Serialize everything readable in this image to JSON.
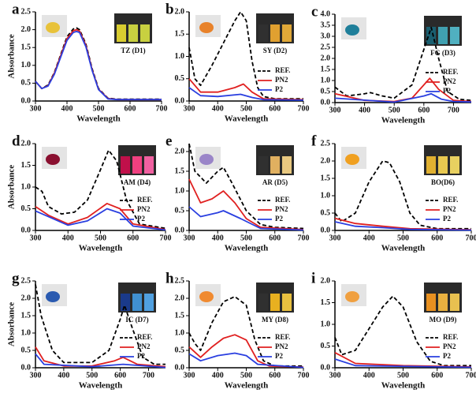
{
  "chart_data": [
    {
      "type": "line",
      "panel": "a",
      "label": "TZ (D1)",
      "ylabel": "Absorbance",
      "xlabel": "Wavelength",
      "legend": false,
      "xlim": [
        300,
        700
      ],
      "xticks": [
        300,
        400,
        500,
        600,
        700
      ],
      "ylim": [
        0,
        2.5
      ],
      "yticks": [
        {
          "value": 0,
          "label": "0.0"
        },
        0.5,
        {
          "value": 1,
          "label": "1.0"
        },
        1.5,
        {
          "value": 2,
          "label": "2.0"
        },
        2.5
      ],
      "series": [
        {
          "name": "REF.",
          "color": "#000000",
          "style": "dashed",
          "x": [
            300,
            320,
            340,
            360,
            380,
            400,
            420,
            430,
            440,
            460,
            480,
            500,
            530,
            560,
            600,
            700
          ],
          "values": [
            0.55,
            0.35,
            0.45,
            0.8,
            1.3,
            1.8,
            2.02,
            2.05,
            2.0,
            1.6,
            0.9,
            0.35,
            0.08,
            0.05,
            0.05,
            0.05
          ]
        },
        {
          "name": "PN2",
          "color": "#e02020",
          "style": "solid",
          "x": [
            300,
            320,
            340,
            360,
            380,
            400,
            420,
            430,
            440,
            460,
            480,
            500,
            530,
            560,
            600,
            700
          ],
          "values": [
            0.55,
            0.35,
            0.43,
            0.78,
            1.27,
            1.75,
            1.97,
            2.0,
            1.96,
            1.56,
            0.87,
            0.33,
            0.07,
            0.04,
            0.04,
            0.04
          ]
        },
        {
          "name": "P2",
          "color": "#2a3fe0",
          "style": "solid",
          "x": [
            300,
            320,
            340,
            360,
            380,
            400,
            420,
            430,
            440,
            460,
            480,
            500,
            530,
            560,
            600,
            700
          ],
          "values": [
            0.55,
            0.35,
            0.42,
            0.75,
            1.23,
            1.7,
            1.92,
            1.95,
            1.92,
            1.52,
            0.85,
            0.32,
            0.06,
            0.04,
            0.04,
            0.04
          ]
        }
      ]
    },
    {
      "type": "line",
      "panel": "b",
      "label": "SY (D2)",
      "xlabel": "Wavelength",
      "legend": true,
      "xlim": [
        300,
        700
      ],
      "xticks": [
        300,
        400,
        500,
        600,
        700
      ],
      "ylim": [
        0,
        2.0
      ],
      "yticks": [
        {
          "value": 0,
          "label": "0.0"
        },
        0.5,
        {
          "value": 1,
          "label": "1.0"
        },
        1.5,
        {
          "value": 2,
          "label": "2.0"
        }
      ],
      "series": [
        {
          "name": "REF.",
          "color": "#000000",
          "style": "dashed",
          "x": [
            300,
            320,
            340,
            380,
            420,
            460,
            480,
            500,
            520,
            540,
            560,
            600,
            700
          ],
          "values": [
            1.2,
            0.5,
            0.35,
            0.8,
            1.3,
            1.8,
            2.0,
            1.8,
            0.9,
            0.3,
            0.1,
            0.05,
            0.05
          ]
        },
        {
          "name": "PN2",
          "color": "#e02020",
          "style": "solid",
          "x": [
            300,
            340,
            400,
            460,
            490,
            520,
            560,
            700
          ],
          "values": [
            0.5,
            0.2,
            0.2,
            0.3,
            0.38,
            0.2,
            0.05,
            0.03
          ]
        },
        {
          "name": "P2",
          "color": "#2a3fe0",
          "style": "solid",
          "x": [
            300,
            340,
            400,
            480,
            520,
            560,
            700
          ],
          "values": [
            0.3,
            0.12,
            0.1,
            0.15,
            0.08,
            0.03,
            0.02
          ]
        }
      ]
    },
    {
      "type": "line",
      "panel": "c",
      "label": "FG (D3)",
      "xlabel": "Wavelength",
      "legend": true,
      "xlim": [
        300,
        760
      ],
      "xticks": [
        300,
        400,
        500,
        600,
        700
      ],
      "ylim": [
        0,
        4.0
      ],
      "yticks": [
        {
          "value": 0,
          "label": "0.0"
        },
        0.5,
        {
          "value": 1,
          "label": "1.0"
        },
        1.5,
        {
          "value": 2,
          "label": "2.0"
        },
        2.5,
        {
          "value": 3,
          "label": "3.0"
        },
        3.5,
        {
          "value": 4,
          "label": "4.0"
        }
      ],
      "series": [
        {
          "name": "REF.",
          "color": "#000000",
          "style": "dashed",
          "x": [
            300,
            340,
            400,
            420,
            460,
            500,
            560,
            600,
            625,
            650,
            680,
            720,
            760
          ],
          "values": [
            0.7,
            0.3,
            0.4,
            0.45,
            0.3,
            0.2,
            0.8,
            2.4,
            3.4,
            2.0,
            0.5,
            0.15,
            0.1
          ]
        },
        {
          "name": "PN2",
          "color": "#e02020",
          "style": "solid",
          "x": [
            300,
            400,
            500,
            560,
            600,
            620,
            650,
            700,
            760
          ],
          "values": [
            0.4,
            0.1,
            0.05,
            0.2,
            0.8,
            1.1,
            0.6,
            0.1,
            0.05
          ]
        },
        {
          "name": "P2",
          "color": "#2a3fe0",
          "style": "solid",
          "x": [
            300,
            500,
            600,
            625,
            660,
            700,
            760
          ],
          "values": [
            0.2,
            0.02,
            0.3,
            0.4,
            0.15,
            0.05,
            0.03
          ]
        }
      ]
    },
    {
      "type": "line",
      "panel": "d",
      "label": "AM (D4)",
      "ylabel": "Absorbance",
      "xlabel": "Wavelength",
      "legend": true,
      "xlim": [
        300,
        700
      ],
      "xticks": [
        300,
        400,
        500,
        600,
        700
      ],
      "ylim": [
        0,
        2.0
      ],
      "yticks": [
        {
          "value": 0,
          "label": "0.0"
        },
        0.5,
        {
          "value": 1,
          "label": "1.0"
        },
        1.5,
        {
          "value": 2,
          "label": "2.0"
        }
      ],
      "series": [
        {
          "name": "REF.",
          "color": "#000000",
          "style": "dashed",
          "x": [
            300,
            320,
            340,
            380,
            420,
            460,
            500,
            525,
            550,
            580,
            620,
            700
          ],
          "values": [
            1.0,
            0.9,
            0.55,
            0.38,
            0.42,
            0.7,
            1.4,
            1.85,
            1.6,
            0.7,
            0.15,
            0.05
          ]
        },
        {
          "name": "PN2",
          "color": "#e02020",
          "style": "solid",
          "x": [
            300,
            340,
            400,
            460,
            520,
            560,
            600,
            700
          ],
          "values": [
            0.55,
            0.35,
            0.15,
            0.3,
            0.62,
            0.5,
            0.15,
            0.02
          ]
        },
        {
          "name": "P2",
          "color": "#2a3fe0",
          "style": "solid",
          "x": [
            300,
            400,
            460,
            520,
            560,
            600,
            700
          ],
          "values": [
            0.45,
            0.12,
            0.22,
            0.5,
            0.4,
            0.1,
            0.01
          ]
        }
      ]
    },
    {
      "type": "line",
      "panel": "e",
      "label": "AR (D5)",
      "xlabel": "Wavelength",
      "legend": true,
      "xlim": [
        300,
        700
      ],
      "xticks": [
        300,
        400,
        500,
        600,
        700
      ],
      "ylim": [
        0,
        2.2
      ],
      "yticks": [
        {
          "value": 0,
          "label": "0.0"
        },
        0.5,
        {
          "value": 1,
          "label": "1.0"
        },
        1.5,
        {
          "value": 2,
          "label": "2.0"
        }
      ],
      "series": [
        {
          "name": "REF.",
          "color": "#000000",
          "style": "dashed",
          "x": [
            300,
            320,
            360,
            400,
            420,
            450,
            500,
            550,
            600,
            700
          ],
          "values": [
            2.2,
            1.5,
            1.2,
            1.5,
            1.6,
            1.2,
            0.5,
            0.15,
            0.08,
            0.05
          ]
        },
        {
          "name": "PN2",
          "color": "#e02020",
          "style": "solid",
          "x": [
            300,
            340,
            380,
            420,
            460,
            500,
            550,
            700
          ],
          "values": [
            1.3,
            0.7,
            0.8,
            1.0,
            0.7,
            0.3,
            0.08,
            0.02
          ]
        },
        {
          "name": "P2",
          "color": "#2a3fe0",
          "style": "solid",
          "x": [
            300,
            340,
            400,
            420,
            480,
            550,
            700
          ],
          "values": [
            0.6,
            0.35,
            0.45,
            0.5,
            0.3,
            0.05,
            0.01
          ]
        }
      ]
    },
    {
      "type": "line",
      "panel": "f",
      "label": "BO(D6)",
      "xlabel": "Wavelength",
      "legend": true,
      "xlim": [
        300,
        700
      ],
      "xticks": [
        300,
        400,
        500,
        600,
        700
      ],
      "ylim": [
        0,
        2.5
      ],
      "yticks": [
        {
          "value": 0,
          "label": "0.0"
        },
        0.5,
        {
          "value": 1,
          "label": "1.0"
        },
        1.5,
        {
          "value": 2,
          "label": "2.0"
        },
        2.5
      ],
      "series": [
        {
          "name": "REF.",
          "color": "#000000",
          "style": "dashed",
          "x": [
            300,
            320,
            360,
            400,
            440,
            460,
            490,
            520,
            550,
            600,
            700
          ],
          "values": [
            0.5,
            0.25,
            0.5,
            1.4,
            2.0,
            1.95,
            1.4,
            0.5,
            0.15,
            0.05,
            0.05
          ]
        },
        {
          "name": "PN2",
          "color": "#e02020",
          "style": "solid",
          "x": [
            300,
            360,
            440,
            520,
            700
          ],
          "values": [
            0.35,
            0.2,
            0.12,
            0.05,
            0.02
          ]
        },
        {
          "name": "P2",
          "color": "#2a3fe0",
          "style": "solid",
          "x": [
            300,
            360,
            440,
            520,
            700
          ],
          "values": [
            0.25,
            0.12,
            0.08,
            0.03,
            0.01
          ]
        }
      ]
    },
    {
      "type": "line",
      "panel": "g",
      "label": "IC (D7)",
      "ylabel": "Absorbance",
      "xlabel": "Wavelength",
      "legend": true,
      "xlim": [
        300,
        760
      ],
      "xticks": [
        300,
        400,
        500,
        600,
        700
      ],
      "ylim": [
        0,
        2.5
      ],
      "yticks": [
        {
          "value": 0,
          "label": "0.0"
        },
        0.5,
        {
          "value": 1,
          "label": "1.0"
        },
        1.5,
        {
          "value": 2,
          "label": "2.0"
        },
        2.5
      ],
      "series": [
        {
          "name": "REF.",
          "color": "#000000",
          "style": "dashed",
          "x": [
            300,
            320,
            340,
            360,
            400,
            500,
            560,
            600,
            615,
            640,
            680,
            720,
            760
          ],
          "values": [
            2.4,
            1.5,
            1.0,
            0.5,
            0.15,
            0.15,
            0.5,
            1.4,
            1.8,
            1.2,
            0.3,
            0.1,
            0.1
          ]
        },
        {
          "name": "PN2",
          "color": "#e02020",
          "style": "solid",
          "x": [
            300,
            330,
            400,
            500,
            580,
            610,
            660,
            760
          ],
          "values": [
            0.6,
            0.2,
            0.05,
            0.05,
            0.2,
            0.3,
            0.1,
            0.03
          ]
        },
        {
          "name": "P2",
          "color": "#2a3fe0",
          "style": "solid",
          "x": [
            300,
            330,
            500,
            610,
            760
          ],
          "values": [
            0.4,
            0.1,
            0.03,
            0.1,
            0.01
          ]
        }
      ]
    },
    {
      "type": "line",
      "panel": "h",
      "label": "MY (D8)",
      "xlabel": "Wavelength",
      "legend": true,
      "xlim": [
        300,
        700
      ],
      "xticks": [
        300,
        400,
        500,
        600,
        700
      ],
      "ylim": [
        0,
        2.5
      ],
      "yticks": [
        {
          "value": 0,
          "label": "0.0"
        },
        0.5,
        {
          "value": 1,
          "label": "1.0"
        },
        1.5,
        {
          "value": 2,
          "label": "2.0"
        },
        2.5
      ],
      "series": [
        {
          "name": "REF.",
          "color": "#000000",
          "style": "dashed",
          "x": [
            300,
            320,
            340,
            380,
            420,
            460,
            500,
            530,
            560,
            600,
            700
          ],
          "values": [
            1.0,
            0.7,
            0.5,
            1.3,
            1.9,
            2.05,
            1.8,
            0.8,
            0.2,
            0.05,
            0.05
          ]
        },
        {
          "name": "PN2",
          "color": "#e02020",
          "style": "solid",
          "x": [
            300,
            340,
            380,
            420,
            460,
            500,
            540,
            580,
            700
          ],
          "values": [
            0.6,
            0.3,
            0.6,
            0.85,
            0.95,
            0.8,
            0.2,
            0.05,
            0.02
          ]
        },
        {
          "name": "P2",
          "color": "#2a3fe0",
          "style": "solid",
          "x": [
            300,
            340,
            400,
            460,
            500,
            540,
            700
          ],
          "values": [
            0.4,
            0.2,
            0.35,
            0.42,
            0.35,
            0.1,
            0.01
          ]
        }
      ]
    },
    {
      "type": "line",
      "panel": "i",
      "label": "MO (D9)",
      "xlabel": "Wavelength",
      "legend": true,
      "xlim": [
        300,
        700
      ],
      "xticks": [
        300,
        400,
        500,
        600,
        700
      ],
      "ylim": [
        0,
        2.0
      ],
      "yticks": [
        {
          "value": 0,
          "label": "0.0"
        },
        0.5,
        {
          "value": 1,
          "label": "1.0"
        },
        1.5,
        {
          "value": 2,
          "label": "2.0"
        }
      ],
      "series": [
        {
          "name": "REF.",
          "color": "#000000",
          "style": "dashed",
          "x": [
            300,
            320,
            360,
            400,
            440,
            470,
            500,
            540,
            580,
            620,
            700
          ],
          "values": [
            0.7,
            0.3,
            0.4,
            0.9,
            1.4,
            1.65,
            1.4,
            0.6,
            0.15,
            0.05,
            0.05
          ]
        },
        {
          "name": "PN2",
          "color": "#e02020",
          "style": "solid",
          "x": [
            300,
            360,
            500,
            700
          ],
          "values": [
            0.35,
            0.1,
            0.05,
            0.02
          ]
        },
        {
          "name": "P2",
          "color": "#2a3fe0",
          "style": "solid",
          "x": [
            300,
            360,
            700
          ],
          "values": [
            0.2,
            0.05,
            0.01
          ]
        }
      ]
    }
  ]
}
